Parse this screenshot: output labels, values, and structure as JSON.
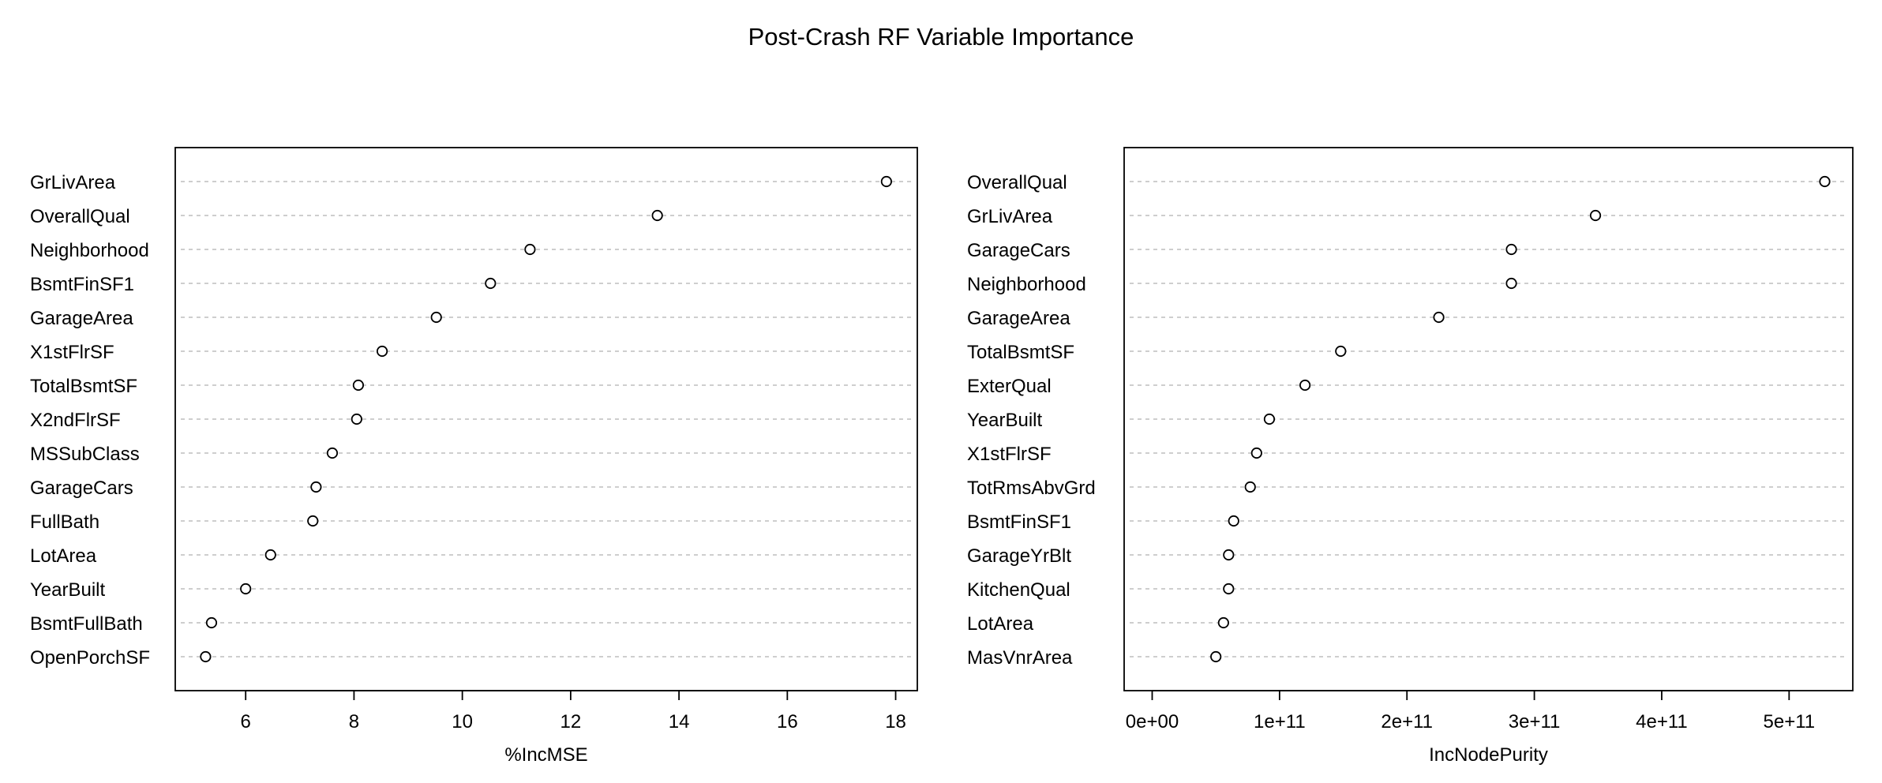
{
  "title": "Post-Crash RF Variable Importance",
  "chart_data": [
    {
      "type": "scatter",
      "subtype": "dotchart",
      "xlabel": "%IncMSE",
      "xlim": [
        4.7,
        18.4
      ],
      "xticks": [
        6,
        8,
        10,
        12,
        14,
        16,
        18
      ],
      "tick_labels": [
        "6",
        "8",
        "10",
        "12",
        "14",
        "16",
        "18"
      ],
      "grid": "horizontal dotted",
      "categories": [
        "GrLivArea",
        "OverallQual",
        "Neighborhood",
        "BsmtFinSF1",
        "GarageArea",
        "X1stFlrSF",
        "TotalBsmtSF",
        "X2ndFlrSF",
        "MSSubClass",
        "GarageCars",
        "FullBath",
        "LotArea",
        "YearBuilt",
        "BsmtFullBath",
        "OpenPorchSF"
      ],
      "values": [
        17.83,
        13.6,
        11.25,
        10.52,
        9.52,
        8.52,
        8.08,
        8.05,
        7.6,
        7.3,
        7.24,
        6.46,
        6.0,
        5.37,
        5.26
      ]
    },
    {
      "type": "scatter",
      "subtype": "dotchart",
      "xlabel": "IncNodePurity",
      "xlim": [
        -22000000000.0,
        550000000000.0
      ],
      "xticks": [
        0,
        100000000000,
        200000000000,
        300000000000,
        400000000000,
        500000000000
      ],
      "tick_labels": [
        "0e+00",
        "1e+11",
        "2e+11",
        "3e+11",
        "4e+11",
        "5e+11"
      ],
      "grid": "horizontal dotted",
      "categories": [
        "OverallQual",
        "GrLivArea",
        "GarageCars",
        "Neighborhood",
        "GarageArea",
        "TotalBsmtSF",
        "ExterQual",
        "YearBuilt",
        "X1stFlrSF",
        "TotRmsAbvGrd",
        "BsmtFinSF1",
        "GarageYrBlt",
        "KitchenQual",
        "LotArea",
        "MasVnrArea"
      ],
      "values": [
        528000000000,
        348000000000,
        282000000000,
        282000000000,
        225000000000,
        148000000000,
        120000000000,
        92000000000,
        82000000000,
        77000000000,
        64000000000,
        60000000000,
        60000000000,
        56000000000,
        50000000000
      ]
    }
  ]
}
